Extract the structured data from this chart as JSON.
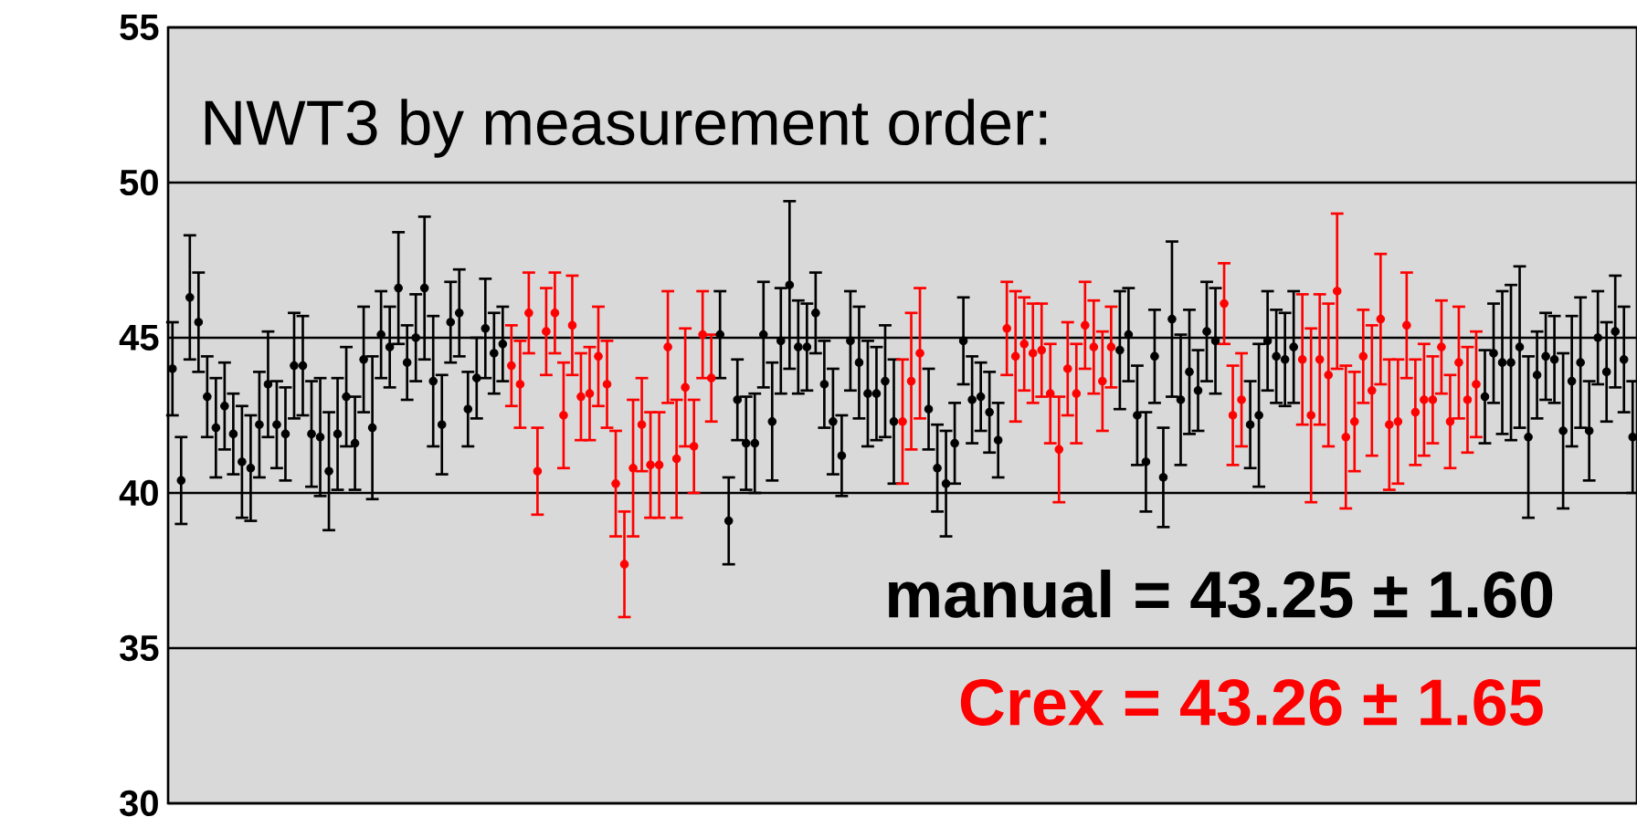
{
  "chart_data": {
    "type": "scatter",
    "title": "NWT3 by measurement order:",
    "annotations": [
      "manual = 43.25 ± 1.60",
      "Crex  = 43.26 ± 1.65"
    ],
    "categories": [
      null,
      null,
      null,
      null,
      null,
      null,
      null,
      null,
      null,
      null,
      null,
      null,
      null,
      null,
      null,
      null,
      null,
      null,
      null,
      null,
      null,
      null,
      null,
      null,
      null,
      null,
      null,
      null,
      null,
      null,
      null,
      null,
      null,
      null,
      null,
      null,
      null,
      null,
      null,
      null,
      null,
      null,
      null,
      null,
      null,
      null,
      null,
      null,
      null,
      null,
      null,
      null,
      null,
      null,
      null,
      null,
      null,
      null,
      null,
      null,
      null,
      null,
      null,
      null,
      null,
      null,
      null,
      null,
      null,
      null,
      null,
      null,
      null,
      null,
      null,
      null,
      null,
      null,
      null,
      null,
      null,
      null,
      null,
      null,
      null,
      null,
      null,
      null,
      null,
      null,
      null,
      null,
      null,
      null,
      null,
      null,
      null,
      null,
      null,
      null,
      null,
      null,
      null,
      null,
      null,
      null,
      null,
      null,
      null,
      null,
      null,
      null,
      null,
      null,
      null,
      null,
      null,
      null,
      null,
      null,
      null,
      null,
      null,
      null,
      null,
      null,
      null,
      null,
      null,
      null,
      null,
      null,
      null,
      null,
      null,
      null,
      null,
      null,
      null,
      null,
      null,
      null,
      null,
      null,
      null,
      null,
      null,
      null,
      null,
      null,
      null,
      null,
      null,
      null,
      null,
      null,
      null,
      null,
      null,
      null,
      null,
      null,
      null,
      null,
      null,
      null,
      null,
      null,
      null
    ],
    "ylim": [
      30,
      55
    ],
    "yticks": [
      30,
      35,
      40,
      45,
      50,
      55
    ],
    "tick_labels": "y",
    "grid": "y",
    "marker": "circle",
    "series": [
      {
        "color": "#000000",
        "values": [
          44.0,
          40.4,
          46.3,
          45.5,
          43.1,
          42.1,
          42.8,
          41.9,
          41.0,
          40.8,
          42.2,
          43.5,
          42.2,
          41.9,
          44.1,
          44.1,
          41.9,
          41.8,
          40.7,
          41.9,
          43.1,
          41.6,
          44.3,
          42.1,
          45.1,
          44.7,
          46.6,
          44.2,
          45.0,
          46.6,
          43.6,
          42.2,
          45.5,
          45.8,
          42.7,
          43.7,
          45.3,
          44.5,
          44.8,
          null,
          null,
          null,
          null,
          null,
          null,
          null,
          null,
          null,
          null,
          null,
          null,
          null,
          null,
          null,
          null,
          null,
          null,
          null,
          null,
          null,
          null,
          null,
          null,
          45.1,
          39.1,
          43.0,
          41.6,
          41.6,
          45.1,
          42.3,
          44.9,
          46.7,
          44.7,
          44.7,
          45.8,
          43.5,
          42.3,
          41.2,
          44.9,
          44.2,
          43.2,
          43.2,
          43.6,
          42.3,
          null,
          null,
          null,
          42.7,
          40.8,
          40.3,
          41.6,
          44.9,
          43.0,
          43.1,
          42.6,
          41.7,
          null,
          null,
          null,
          null,
          null,
          null,
          null,
          null,
          null,
          null,
          null,
          null,
          null,
          44.6,
          45.1,
          42.5,
          41.0,
          44.4,
          40.5,
          45.6,
          43.0,
          43.9,
          43.3,
          45.2,
          44.9,
          null,
          null,
          null,
          42.2,
          42.5,
          44.9,
          44.4,
          44.3,
          44.7,
          null,
          null,
          null,
          null,
          null,
          null,
          null,
          null,
          null,
          null,
          null,
          null,
          null,
          null,
          null,
          null,
          null,
          null,
          null,
          null,
          null,
          43.1,
          44.5,
          44.2,
          44.2,
          44.7,
          41.8,
          43.8,
          44.4,
          44.3,
          42.0,
          43.6,
          44.2,
          42.0,
          45.0,
          43.9,
          45.2,
          44.3,
          41.8
        ],
        "errors": [
          1.5,
          1.4,
          2.0,
          1.6,
          1.3,
          1.6,
          1.4,
          1.3,
          1.8,
          1.7,
          1.7,
          1.7,
          1.4,
          1.5,
          1.7,
          1.6,
          1.7,
          1.9,
          1.9,
          1.8,
          1.6,
          1.5,
          1.7,
          2.3,
          1.4,
          1.3,
          1.8,
          1.2,
          1.4,
          2.3,
          2.1,
          1.6,
          1.3,
          1.4,
          1.2,
          1.3,
          1.6,
          1.3,
          1.2,
          null,
          null,
          null,
          null,
          null,
          null,
          null,
          null,
          null,
          null,
          null,
          null,
          null,
          null,
          null,
          null,
          null,
          null,
          null,
          null,
          null,
          null,
          null,
          null,
          1.4,
          1.4,
          1.3,
          1.5,
          1.6,
          1.7,
          1.9,
          1.7,
          2.7,
          1.5,
          1.4,
          1.3,
          1.4,
          1.7,
          1.3,
          1.6,
          1.8,
          1.7,
          1.5,
          1.8,
          2.0,
          null,
          null,
          null,
          1.3,
          1.4,
          1.7,
          1.3,
          1.4,
          1.4,
          1.1,
          1.3,
          1.2,
          null,
          null,
          null,
          null,
          null,
          null,
          null,
          null,
          null,
          null,
          null,
          null,
          null,
          1.9,
          1.5,
          1.6,
          1.6,
          1.5,
          1.6,
          2.5,
          2.1,
          2.0,
          1.3,
          1.6,
          1.7,
          null,
          null,
          null,
          1.4,
          2.3,
          1.6,
          1.5,
          1.5,
          1.8,
          null,
          null,
          null,
          null,
          null,
          null,
          null,
          null,
          null,
          null,
          null,
          null,
          null,
          null,
          null,
          null,
          null,
          null,
          null,
          null,
          null,
          1.5,
          1.6,
          2.3,
          2.5,
          2.6,
          2.6,
          1.4,
          1.4,
          1.4,
          2.5,
          2.1,
          2.1,
          1.6,
          1.5,
          1.6,
          1.8,
          1.7,
          1.8
        ]
      },
      {
        "color": "#ff0000",
        "values": [
          null,
          null,
          null,
          null,
          null,
          null,
          null,
          null,
          null,
          null,
          null,
          null,
          null,
          null,
          null,
          null,
          null,
          null,
          null,
          null,
          null,
          null,
          null,
          null,
          null,
          null,
          null,
          null,
          null,
          null,
          null,
          null,
          null,
          null,
          null,
          null,
          null,
          null,
          null,
          44.1,
          43.5,
          45.8,
          40.7,
          45.2,
          45.8,
          42.5,
          45.4,
          43.1,
          43.2,
          44.4,
          43.5,
          40.3,
          37.7,
          40.8,
          42.2,
          40.9,
          40.9,
          44.7,
          41.1,
          43.4,
          41.5,
          45.1,
          43.7,
          null,
          null,
          null,
          null,
          null,
          null,
          null,
          null,
          null,
          null,
          null,
          null,
          null,
          null,
          null,
          null,
          null,
          null,
          null,
          null,
          null,
          42.3,
          43.6,
          44.5,
          null,
          null,
          null,
          null,
          null,
          null,
          null,
          null,
          null,
          45.3,
          44.4,
          44.8,
          44.5,
          44.6,
          43.2,
          41.4,
          44.0,
          43.2,
          45.4,
          44.7,
          43.6,
          44.7,
          null,
          null,
          null,
          null,
          null,
          null,
          null,
          null,
          null,
          null,
          null,
          null,
          46.1,
          42.5,
          43.0,
          null,
          null,
          null,
          null,
          null,
          null,
          44.3,
          42.5,
          44.3,
          43.8,
          46.5,
          41.8,
          42.3,
          44.4,
          43.3,
          45.6,
          42.2,
          42.3,
          45.4,
          42.6,
          43.0,
          43.0,
          44.7,
          42.3,
          44.2,
          43.0,
          43.5,
          null,
          null,
          null,
          null,
          null,
          null,
          null,
          null,
          null,
          null,
          null,
          null,
          null,
          null,
          null,
          null,
          null,
          null
        ],
        "errors": [
          null,
          null,
          null,
          null,
          null,
          null,
          null,
          null,
          null,
          null,
          null,
          null,
          null,
          null,
          null,
          null,
          null,
          null,
          null,
          null,
          null,
          null,
          null,
          null,
          null,
          null,
          null,
          null,
          null,
          null,
          null,
          null,
          null,
          null,
          null,
          null,
          null,
          null,
          null,
          1.3,
          1.4,
          1.3,
          1.4,
          1.4,
          1.3,
          1.7,
          1.6,
          1.4,
          1.5,
          1.6,
          1.4,
          1.7,
          1.7,
          2.2,
          1.5,
          1.7,
          1.7,
          1.8,
          1.9,
          1.9,
          1.5,
          1.4,
          1.4,
          null,
          null,
          null,
          null,
          null,
          null,
          null,
          null,
          null,
          null,
          null,
          null,
          null,
          null,
          null,
          null,
          null,
          null,
          null,
          null,
          null,
          2.0,
          2.2,
          2.1,
          null,
          null,
          null,
          null,
          null,
          null,
          null,
          null,
          null,
          1.5,
          2.1,
          1.5,
          1.6,
          1.5,
          1.6,
          1.7,
          1.5,
          1.6,
          1.4,
          1.5,
          1.6,
          1.3,
          null,
          null,
          null,
          null,
          null,
          null,
          null,
          null,
          null,
          null,
          null,
          null,
          1.3,
          1.6,
          1.5,
          null,
          null,
          null,
          null,
          null,
          null,
          2.1,
          2.8,
          2.1,
          2.3,
          2.5,
          2.3,
          1.6,
          1.5,
          2.1,
          2.1,
          2.1,
          2.0,
          1.7,
          1.7,
          1.8,
          1.4,
          1.5,
          1.5,
          1.8,
          1.7,
          1.7,
          null,
          null,
          null,
          null,
          null,
          null,
          null,
          null,
          null,
          null,
          null,
          null,
          null,
          null,
          null,
          null,
          null,
          null
        ]
      }
    ]
  }
}
